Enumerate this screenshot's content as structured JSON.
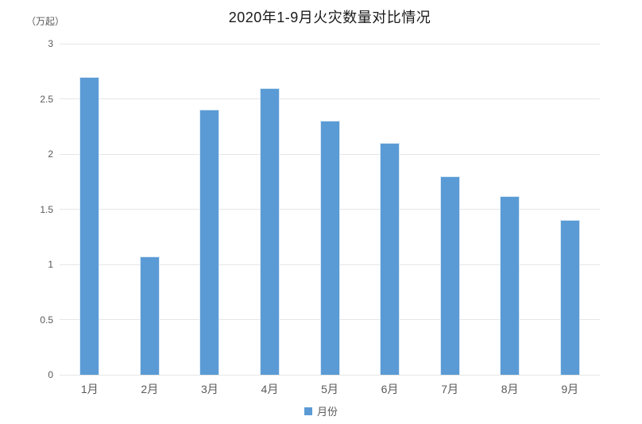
{
  "chart": {
    "title": "2020年1-9月火灾数量对比情况",
    "unit_label": "（万起）",
    "legend": {
      "label": "月份",
      "swatch_color": "#5B9BD5"
    }
  },
  "chart_data": {
    "type": "bar",
    "title": "2020年1-9月火灾数量对比情况",
    "categories": [
      "1月",
      "2月",
      "3月",
      "4月",
      "5月",
      "6月",
      "7月",
      "8月",
      "9月"
    ],
    "values": [
      2.7,
      1.07,
      2.4,
      2.6,
      2.3,
      2.1,
      1.8,
      1.62,
      1.4
    ],
    "series_name": "月份",
    "xlabel": "",
    "ylabel": "（万起）",
    "ylim": [
      0,
      3
    ],
    "yticks": [
      0,
      0.5,
      1,
      1.5,
      2,
      2.5,
      3
    ],
    "grid": true,
    "legend_position": "bottom",
    "colors": {
      "bar": "#5B9BD5",
      "gridline": "#e6e6e6",
      "tick_label": "#595959",
      "title": "#1a1a1a"
    }
  }
}
